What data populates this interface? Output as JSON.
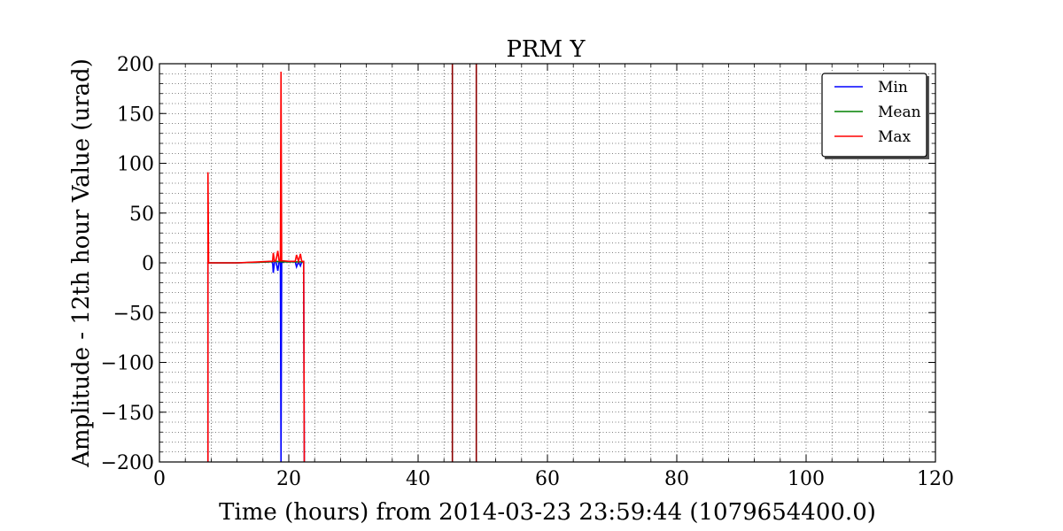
{
  "chart_data": {
    "type": "line",
    "title": "PRM Y",
    "xlabel": "Time (hours) from 2014-03-23 23:59:44 (1079654400.0)",
    "ylabel": "Amplitude - 12th hour Value (urad)",
    "xlim": [
      0,
      120
    ],
    "ylim": [
      -200,
      200
    ],
    "xticks": [
      0,
      20,
      40,
      60,
      80,
      100,
      120
    ],
    "yticks": [
      -200,
      -150,
      -100,
      -50,
      0,
      50,
      100,
      150,
      200
    ],
    "xtick_labels": [
      "0",
      "20",
      "40",
      "60",
      "80",
      "100",
      "120"
    ],
    "ytick_labels": [
      "−200",
      "−150",
      "−100",
      "−50",
      "0",
      "50",
      "100",
      "150",
      "200"
    ],
    "grid": true,
    "minor_grid": true,
    "legend_position": "top-right",
    "series": [
      {
        "name": "Min",
        "color": "#0000ff",
        "x": [
          7.5,
          7.5,
          8,
          12,
          15,
          17,
          17.5,
          17.6,
          17.8,
          18,
          18.3,
          18.5,
          18.7,
          18.8,
          18.9,
          19.2,
          20,
          21,
          21.2,
          21.5,
          21.8,
          22,
          22.3,
          22.4
        ],
        "y": [
          -200,
          0,
          0,
          0,
          0.5,
          1,
          1,
          -10,
          1,
          2,
          -8,
          1,
          1,
          -200,
          0,
          1,
          1,
          1,
          -4,
          1,
          -3,
          1,
          1,
          -200
        ]
      },
      {
        "name": "Mean",
        "color": "#008000",
        "x": [
          7.5,
          8,
          12,
          15,
          17,
          18,
          19,
          20,
          21,
          22,
          22.3
        ],
        "y": [
          0,
          0,
          0,
          0.5,
          1,
          1.5,
          1,
          1,
          1,
          1,
          1
        ]
      },
      {
        "name": "Max",
        "color": "#ff0000",
        "x": [
          7.5,
          7.5,
          7.6,
          8,
          12,
          15,
          17,
          17.5,
          17.6,
          17.8,
          18,
          18.3,
          18.5,
          18.7,
          18.8,
          18.9,
          19.2,
          20,
          21,
          21.2,
          21.5,
          21.8,
          22,
          22.3,
          22.4
        ],
        "y": [
          -200,
          91,
          0,
          0,
          0,
          0.8,
          1.5,
          1.5,
          10,
          1.5,
          2,
          12,
          2,
          2,
          192,
          2,
          2,
          1.5,
          1.5,
          8,
          1.5,
          9,
          1.5,
          1.5,
          -200
        ]
      },
      {
        "name": "",
        "color": "#8b0000",
        "x": [
          45.3,
          45.3
        ],
        "y": [
          -200,
          200
        ]
      },
      {
        "name": "",
        "color": "#8b0000",
        "x": [
          49,
          49
        ],
        "y": [
          -200,
          200
        ]
      }
    ]
  }
}
